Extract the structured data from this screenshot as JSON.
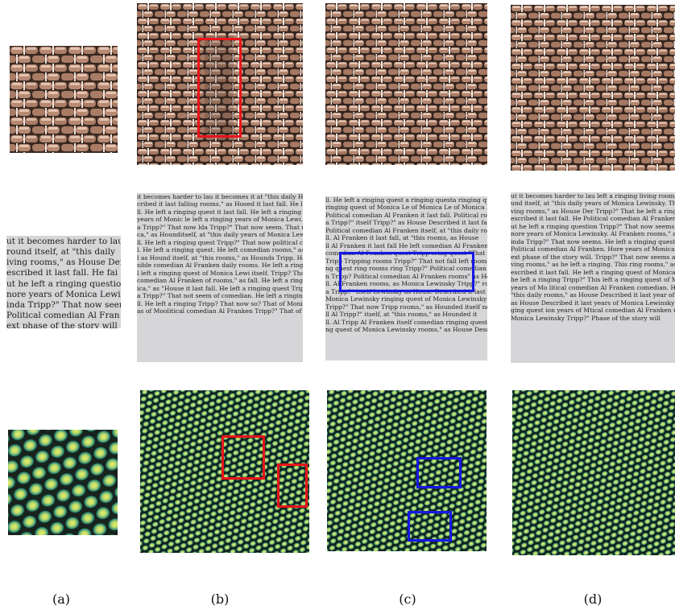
{
  "captions": [
    "(a)",
    "(b)",
    "(c)",
    "(d)"
  ],
  "text_sample_source": [
    "ut it becomes harder to lau",
    "round itself, at \"this daily",
    "iving rooms,\" as House Der",
    "escribed it last fall. He fai",
    "ut he left a ringing question",
    "nore years of Monica Lewin",
    "inda Tripp?\" That now seem",
    "Political comedian Al Fran",
    "ext phase of the story will"
  ],
  "text_synth_b": [
    "it becomes harder to lau it becomes it at \"this daily Hound itself, at \"this rooms,\" as House",
    "cribed it last falling rooms,\" as Hooed it last fall. He left a ringing quest ion? That",
    "ll. He left a ringing quest it last fall. He left a ringing quest of Monica Lewinsky",
    "years of Monic le left a ringing years of Monica Lewi. He left a ringing quest of Moni",
    "a Tripp?\" That now lda Tripp?\" That now seem. That now seems ringing question tripp",
    "ca,\" as Hounditself, at \"this daily years of Monica Lewi. It last fall comedian Al",
    "ll. He left a ringing quest Tripp?\" That now political comedian Al Franken",
    "l. He left a ringing quest. He left comedian rooms,\" as House Described",
    "l as Hound itself, at \"this rooms,\" as Hounds Tripp. He left a ringing quest",
    "sible comedian Al Franken daily rooms. He left a ringing quest of comedian Al",
    "l left a ringing quest of Monica Lewi itself. Tripp? That rooms,\" as House",
    "comedian Al Franken of rooms,\" as fall. He left a ringing quest of Monica",
    "ica,\" as \"House it last fall. He left a ringing quest Tripp?\" That now seems",
    "a Tripp?\" That not seem of comedian. He left a ringing quest. Monica Lewinsky",
    "ll. He left a ringing Tripp? That now so? That of Monica Lewinsky Trip",
    "as of Moolitical comedian Al Franken Tripp?\" That of Monica Lewinsky"
  ],
  "text_synth_c": [
    "ll. He left a ringing quest a ringing questa ringing quest",
    "ringing quest of Monica Le of Monica Le of Monica Le of Monica",
    "Political comedian Al Franken it last fall. Political rooms",
    "a Tripp?\" itself Tripp?\" as House Described it last fall",
    "Political comedian Al Franken itself, at \"this daily rooms",
    "ll. Al Franken it last fall, at \"this rooms, as House",
    "ll Al Franken it last fall He left comedian Al Franken",
    "comedian Al Franken quest Tripp sring quest \"That now",
    "Tripp Tripping rooms Tripp?\" That not fall left rooms",
    "ng quest ring rooms ring Tripp?\" Political comedian ring",
    "n Tripp? Political comedian Al Franken rooms\" as Hounded",
    "ll. Al Franken rooms, as Monica Lewinsky Tripp?\" rooms",
    "a Tripp?\" itself Lewinsky as House Described it last fall",
    "Monica Lewinsky ringing quest of Monica Lewinsky fall",
    "Tripp?\" That now Tripp rooms,\" as Hounded itself now",
    "ll Al Tripp?\" itself, at \"this rooms,\" as Hounded it",
    "ll. Al Tripp Al Franken itself comedian ringing quest",
    "ng quest of Monica Lewinsky rooms,\" as House Described"
  ],
  "text_synth_d": [
    "ut it becomes harder to lau left a ringing living rooms,\" as House",
    "und itself, at \"this daily years of Monica Lewinsky. That he left a",
    "ving rooms,\" as House Der Tripp?\" That he left a ringing quest",
    "escribed it last fall. He Political comedian Al Franken. Tripp?",
    "ut he left a ringing question Tripp?\" That now seems Monica",
    "nore years of Monica Lewinsky. Al Franken rooms,\" as Hound itself",
    "inda Tripp?\" That now seems. He left a ringing question of",
    "Political comedian Al Franken. Hore years of Monica Lewinsky",
    "ext phase of the story will. Tripp?\" That now seems as House",
    "ving rooms,\" as he left a ringing. This ring rooms,\" as House",
    "escribed it last fall. He left a ringing quest of Monica",
    "he left a ringing Tripp?\" This left a ringing quest of Monica",
    "years of Mo litical comedian Al Franken comedian. He left a ring",
    "\"this daily rooms,\" as House Described it last year of Monica",
    "as House Described it last years of Monica Lewinsky Tripp?\" That",
    "ging quest ion years of Mtical comedian Al Franken rooms",
    "Monica Lewinsky Tripp?\" Phase of the story will"
  ],
  "colors": {
    "highlight_red": "#e8141a",
    "highlight_blue": "#1717e6",
    "wicker_dark": "#3a2a22",
    "wicker_light": "#c29a84",
    "lizard_dark": "#1b2a22",
    "lizard_light": "#d9e86a",
    "lizard_mid": "#2e8c78",
    "text_bg": "#d6d6d8"
  }
}
